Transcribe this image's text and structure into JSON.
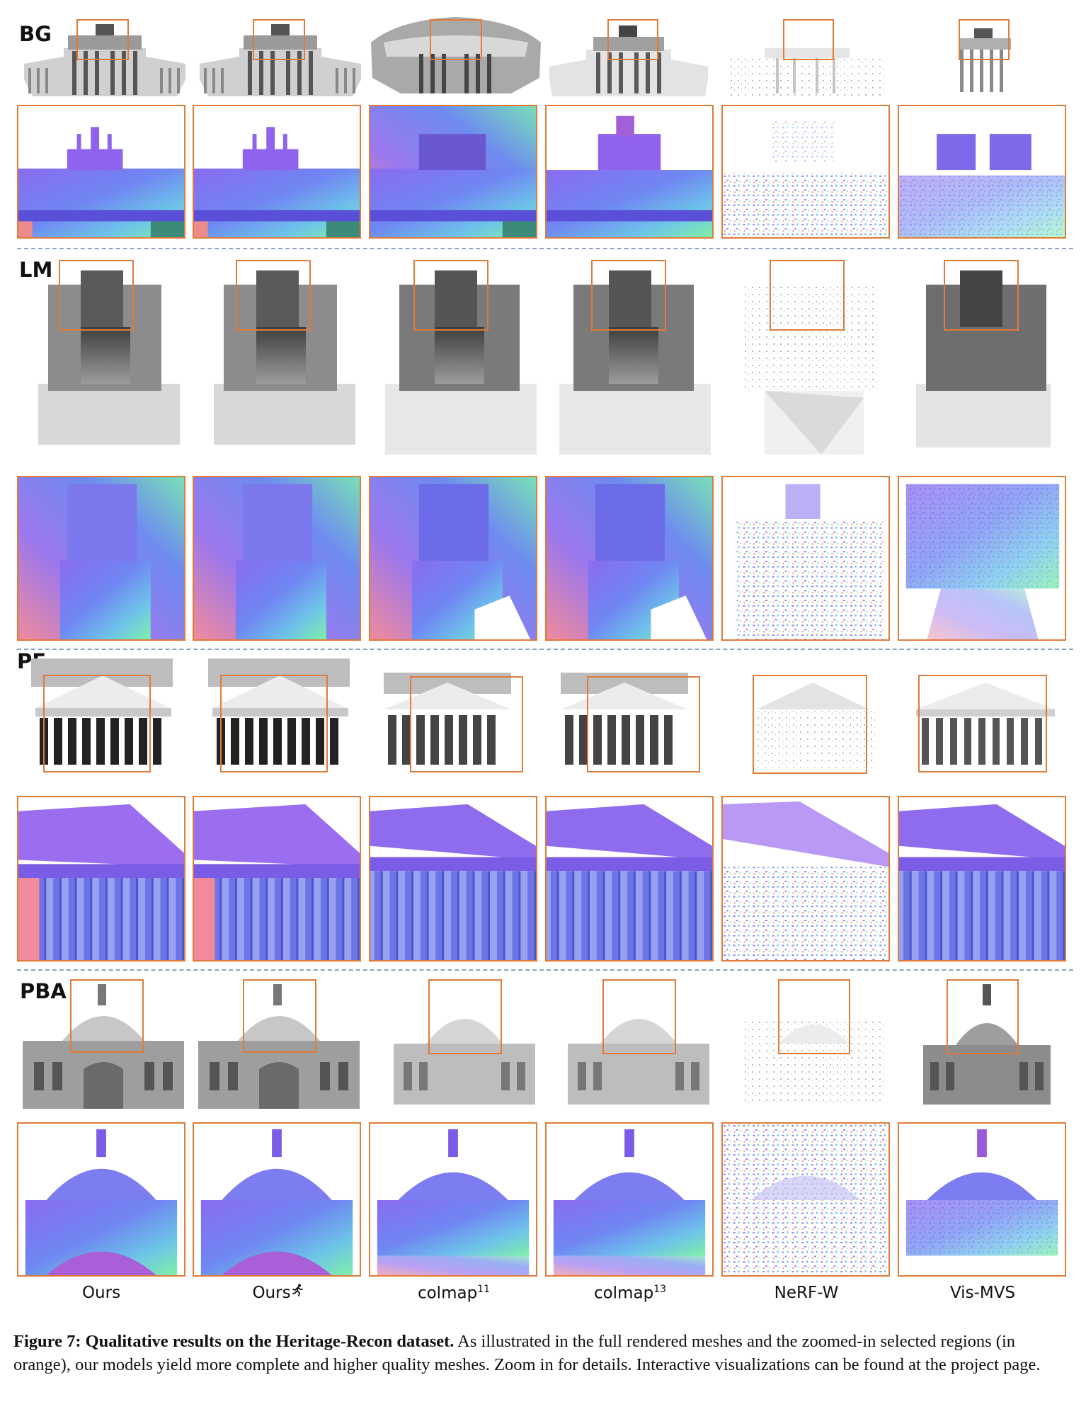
{
  "figure": {
    "scenes": [
      {
        "label": "BG"
      },
      {
        "label": "LM"
      },
      {
        "label": "PE"
      },
      {
        "label": "PBA"
      }
    ],
    "columns": [
      {
        "name": "Ours",
        "sup": ""
      },
      {
        "name": "Ours",
        "sup": ""
      },
      {
        "name": "colmap",
        "sup": "11"
      },
      {
        "name": "colmap",
        "sup": "13"
      },
      {
        "name": "NeRF-W",
        "sup": ""
      },
      {
        "name": "Vis-MVS",
        "sup": ""
      }
    ],
    "ours_fast_icon": "running-person-icon",
    "highlight_color": "#e07b39",
    "separator_color": "#8fa2bd"
  },
  "caption": {
    "title": "Figure 7: Qualitative results on the Heritage-Recon dataset.",
    "body": "As illustrated in the full rendered meshes and the zoomed-in selected regions (in orange), our models yield more complete and higher quality meshes. Zoom in for details. Interactive visualizations can be found at the project page."
  }
}
